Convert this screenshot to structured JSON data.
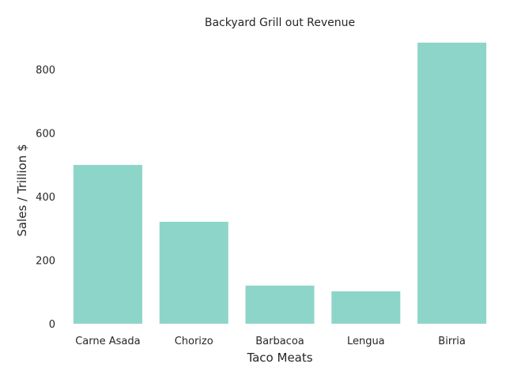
{
  "chart_data": {
    "type": "bar",
    "title": "Backyard Grill out Revenue",
    "xlabel": "Taco Meats",
    "ylabel": "Sales / Trillion $",
    "categories": [
      "Carne Asada",
      "Chorizo",
      "Barbacoa",
      "Lengua",
      "Birria"
    ],
    "values": [
      500,
      321,
      120,
      102,
      885
    ],
    "ylim": [
      0,
      900
    ],
    "yticks": [
      0,
      200,
      400,
      600,
      800
    ],
    "grid": false,
    "legend": "none",
    "bar_color": "#8dd5c8"
  }
}
